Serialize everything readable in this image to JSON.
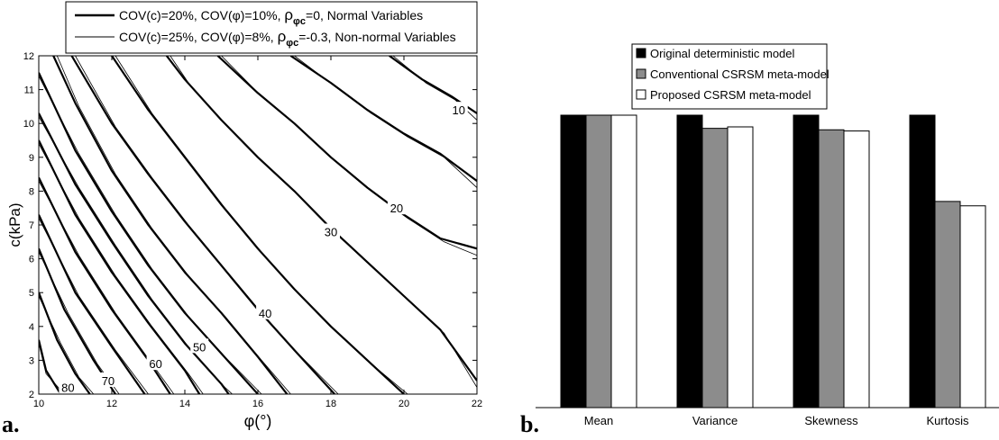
{
  "panels": {
    "a": {
      "label": "a.",
      "legend": {
        "entries": [
          {
            "style": "thick",
            "t1": "COV(c)=20%, COV(",
            "phi": "φ",
            "t2": ")=10%,  ",
            "rho": "ρ",
            "rho_sub": "φc",
            "t3": "=0, Normal Variables"
          },
          {
            "style": "thin",
            "t1": "COV(c)=25%, COV(",
            "phi": "φ",
            "t2": ")=8%,  ",
            "rho": "ρ",
            "rho_sub": "φc",
            "t3": "=-0.3, Non-normal Variables"
          }
        ]
      },
      "xlabel": "φ(°)",
      "ylabel": "c(kPa)"
    },
    "b": {
      "label": "b.",
      "legend": {
        "entries": [
          {
            "name": "Original deterministic model",
            "color": "#000000"
          },
          {
            "name": "Conventional CSRSM meta-model",
            "color": "#8c8c8c"
          },
          {
            "name": "Proposed CSRSM meta-model",
            "color": "#ffffff"
          }
        ]
      }
    }
  },
  "chart_data": [
    {
      "type": "line",
      "chart_kind": "contour",
      "xlabel": "φ(°)",
      "ylabel": "c(kPa)",
      "xlim": [
        10,
        22
      ],
      "ylim": [
        2,
        12
      ],
      "xticks": [
        10,
        12,
        14,
        16,
        18,
        20,
        22
      ],
      "yticks": [
        2,
        3,
        4,
        5,
        6,
        7,
        8,
        9,
        10,
        11,
        12
      ],
      "grid": false,
      "contour_levels": [
        10,
        20,
        30,
        40,
        50,
        60,
        70,
        80
      ],
      "series": [
        {
          "name": "COV(c)=20%, COV(φ)=10%, ρφc=0, Normal Variables",
          "style": "thick",
          "lines": [
            {
              "x": [
                10.0,
                10.2,
                10.6
              ],
              "y": [
                3.6,
                2.7,
                2.0
              ]
            },
            {
              "x": [
                10.0,
                10.5,
                11.0,
                11.4
              ],
              "y": [
                5.0,
                3.6,
                2.6,
                2.0
              ]
            },
            {
              "x": [
                10.0,
                10.7,
                11.5,
                12.1
              ],
              "y": [
                6.3,
                4.5,
                3.0,
                2.0
              ]
            },
            {
              "x": [
                10.0,
                11.0,
                12.0,
                12.9
              ],
              "y": [
                7.3,
                5.0,
                3.4,
                2.0
              ]
            },
            {
              "x": [
                10.0,
                11.0,
                12.0,
                13.0,
                13.6
              ],
              "y": [
                8.4,
                6.2,
                4.5,
                3.0,
                2.0
              ]
            },
            {
              "x": [
                10.0,
                11.0,
                12.0,
                13.0,
                14.0,
                14.4
              ],
              "y": [
                9.5,
                7.3,
                5.6,
                4.1,
                2.7,
                2.0
              ]
            },
            {
              "x": [
                10.0,
                11.0,
                12.0,
                13.0,
                14.0,
                15.0,
                15.2
              ],
              "y": [
                10.3,
                8.2,
                6.5,
                4.9,
                3.5,
                2.3,
                2.0
              ]
            },
            {
              "x": [
                10.0,
                11.0,
                12.0,
                13.0,
                14.0,
                15.0,
                16.0
              ],
              "y": [
                11.5,
                9.2,
                7.4,
                5.8,
                4.4,
                3.2,
                2.0
              ]
            },
            {
              "x": [
                10.4,
                11.0,
                12.0,
                13.0,
                14.0,
                15.0,
                16.0,
                16.8
              ],
              "y": [
                12.0,
                10.6,
                8.6,
                7.0,
                5.6,
                4.4,
                3.1,
                2.0
              ]
            },
            {
              "x": [
                10.9,
                12.0,
                13.0,
                14.0,
                15.0,
                16.0,
                17.0,
                18.1
              ],
              "y": [
                12.0,
                10.0,
                8.5,
                7.1,
                5.8,
                4.5,
                3.3,
                2.0
              ]
            },
            {
              "x": [
                12.0,
                13.0,
                14.0,
                15.0,
                16.0,
                17.0,
                18.0,
                19.0,
                20.0
              ],
              "y": [
                12.0,
                10.4,
                9.0,
                7.6,
                6.3,
                5.1,
                4.0,
                3.0,
                2.0
              ]
            },
            {
              "x": [
                13.5,
                14.0,
                15.0,
                16.0,
                17.0,
                18.0,
                19.0,
                20.0,
                21.0,
                22.0
              ],
              "y": [
                12.0,
                11.3,
                10.1,
                9.0,
                8.0,
                6.9,
                5.9,
                4.9,
                3.9,
                2.4
              ]
            },
            {
              "x": [
                14.9,
                16.0,
                17.0,
                18.0,
                19.0,
                20.0,
                21.0,
                22.0
              ],
              "y": [
                12.0,
                10.9,
                10.0,
                9.0,
                8.1,
                7.3,
                6.6,
                6.3
              ]
            },
            {
              "x": [
                16.9,
                18.0,
                19.0,
                20.0,
                21.0,
                22.0
              ],
              "y": [
                12.0,
                11.2,
                10.4,
                9.7,
                9.1,
                8.3
              ]
            },
            {
              "x": [
                19.6,
                20.5,
                21.3,
                22.0
              ],
              "y": [
                12.0,
                11.3,
                10.8,
                10.3
              ]
            }
          ]
        },
        {
          "name": "COV(c)=25%, COV(φ)=8%, ρφc=-0.3, Non-normal Variables",
          "style": "thin",
          "lines": [
            {
              "x": [
                10.0,
                10.2,
                10.7
              ],
              "y": [
                3.5,
                2.6,
                2.0
              ]
            },
            {
              "x": [
                10.0,
                10.6,
                11.1,
                11.5
              ],
              "y": [
                4.9,
                3.5,
                2.5,
                2.0
              ]
            },
            {
              "x": [
                10.0,
                10.8,
                11.6,
                12.2
              ],
              "y": [
                6.2,
                4.4,
                2.9,
                2.0
              ]
            },
            {
              "x": [
                10.0,
                11.1,
                12.1,
                13.0
              ],
              "y": [
                7.2,
                4.9,
                3.3,
                2.0
              ]
            },
            {
              "x": [
                10.0,
                11.1,
                12.1,
                13.1,
                13.7
              ],
              "y": [
                8.3,
                6.1,
                4.4,
                2.9,
                2.0
              ]
            },
            {
              "x": [
                10.0,
                11.1,
                12.1,
                13.1,
                14.1,
                14.5
              ],
              "y": [
                9.4,
                7.2,
                5.5,
                4.0,
                2.6,
                2.0
              ]
            },
            {
              "x": [
                10.0,
                11.1,
                12.1,
                13.1,
                14.1,
                15.1,
                15.3
              ],
              "y": [
                10.2,
                8.1,
                6.4,
                4.8,
                3.4,
                2.2,
                2.0
              ]
            },
            {
              "x": [
                10.0,
                11.1,
                12.1,
                13.1,
                14.1,
                15.1,
                16.1
              ],
              "y": [
                11.4,
                9.1,
                7.3,
                5.7,
                4.3,
                3.1,
                2.0
              ]
            },
            {
              "x": [
                10.5,
                11.1,
                12.1,
                13.1,
                14.1,
                15.1,
                16.1,
                16.9
              ],
              "y": [
                12.0,
                10.5,
                8.5,
                6.9,
                5.5,
                4.3,
                3.0,
                2.0
              ]
            },
            {
              "x": [
                11.0,
                12.1,
                13.1,
                14.1,
                15.1,
                16.1,
                17.1,
                18.2
              ],
              "y": [
                12.0,
                9.9,
                8.4,
                7.0,
                5.7,
                4.4,
                3.2,
                2.0
              ]
            },
            {
              "x": [
                12.1,
                13.1,
                14.1,
                15.1,
                16.1,
                17.1,
                18.1,
                19.1,
                20.1
              ],
              "y": [
                12.0,
                10.3,
                8.9,
                7.5,
                6.2,
                5.0,
                3.9,
                2.9,
                2.0
              ]
            },
            {
              "x": [
                13.6,
                14.1,
                15.1,
                16.1,
                17.1,
                18.1,
                19.1,
                20.1,
                21.1,
                22.0
              ],
              "y": [
                12.0,
                11.2,
                10.0,
                8.9,
                7.9,
                6.8,
                5.8,
                4.8,
                3.8,
                2.2
              ]
            },
            {
              "x": [
                15.0,
                16.1,
                17.1,
                18.1,
                19.1,
                20.1,
                21.1,
                22.0
              ],
              "y": [
                12.0,
                10.8,
                9.9,
                8.9,
                8.0,
                7.2,
                6.5,
                6.1
              ]
            },
            {
              "x": [
                17.0,
                18.1,
                19.1,
                20.1,
                21.1,
                22.0
              ],
              "y": [
                12.0,
                11.1,
                10.3,
                9.6,
                9.0,
                8.1
              ]
            },
            {
              "x": [
                19.7,
                20.6,
                21.4,
                22.0
              ],
              "y": [
                12.0,
                11.2,
                10.7,
                10.1
              ]
            }
          ]
        }
      ],
      "contour_labels": [
        {
          "text": "10",
          "x": 21.5,
          "y": 10.4
        },
        {
          "text": "20",
          "x": 19.8,
          "y": 7.5
        },
        {
          "text": "30",
          "x": 18.0,
          "y": 6.8
        },
        {
          "text": "40",
          "x": 16.2,
          "y": 4.4
        },
        {
          "text": "50",
          "x": 14.4,
          "y": 3.4
        },
        {
          "text": "60",
          "x": 13.2,
          "y": 2.9
        },
        {
          "text": "70",
          "x": 11.9,
          "y": 2.4
        },
        {
          "text": "80",
          "x": 10.8,
          "y": 2.2
        }
      ]
    },
    {
      "type": "bar",
      "categories": [
        "Mean",
        "Variance",
        "Skewness",
        "Kurtosis"
      ],
      "series": [
        {
          "name": "Original deterministic model",
          "color": "#000000",
          "values": [
            1.0,
            1.0,
            1.0,
            1.0
          ]
        },
        {
          "name": "Conventional CSRSM meta-model",
          "color": "#8c8c8c",
          "values": [
            1.0,
            0.955,
            0.95,
            0.705
          ]
        },
        {
          "name": "Proposed CSRSM meta-model",
          "color": "#ffffff",
          "values": [
            1.0,
            0.96,
            0.946,
            0.69
          ]
        }
      ],
      "ylim": [
        0,
        1.3
      ],
      "grid": false,
      "legend_position": "top-center"
    }
  ]
}
